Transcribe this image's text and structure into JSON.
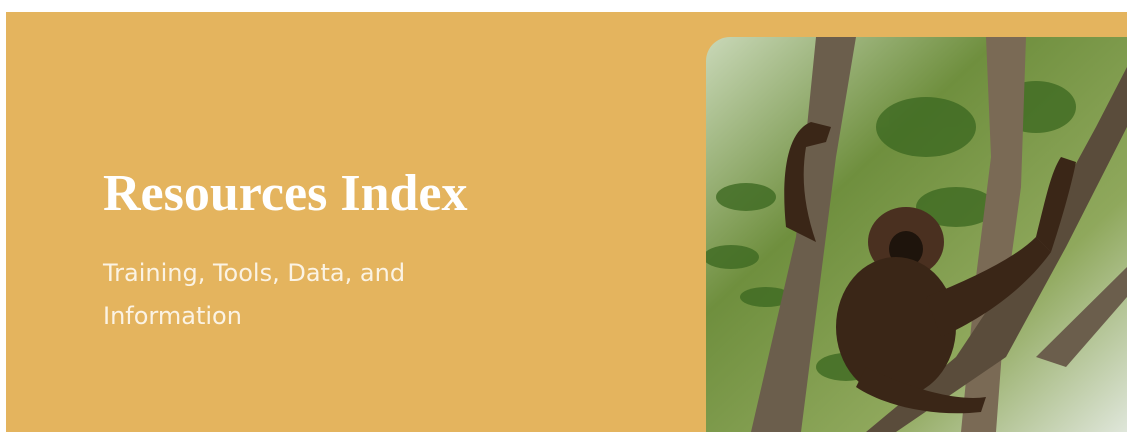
{
  "header": {
    "title": "Resources Index",
    "subtitle": "Training, Tools, Data, and Information"
  }
}
